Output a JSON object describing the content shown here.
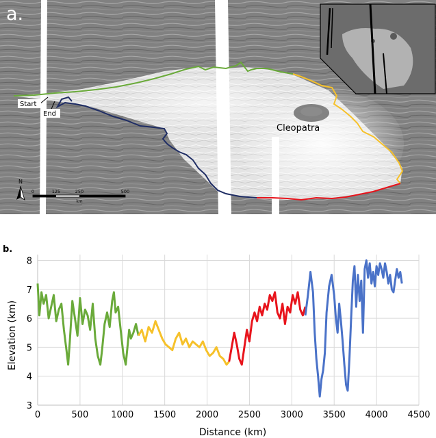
{
  "panel_a": {
    "panel_label": "a.",
    "place_label": "Cleopatra",
    "start_label": "Start",
    "end_label": "End",
    "north_label": "N",
    "scale": {
      "unit": "km",
      "ticks": [
        {
          "value": 0,
          "label": "0"
        },
        {
          "value": 125,
          "label": "125"
        },
        {
          "value": 250,
          "label": "250"
        },
        {
          "value": 500,
          "label": "500"
        }
      ]
    },
    "trace_colors": {
      "green": "#6aaa3a",
      "yellow": "#f6c12a",
      "red": "#e8141c",
      "navy": "#1f2d64"
    }
  },
  "chart_data": {
    "type": "line",
    "panel_label": "b.",
    "title": "",
    "xlabel": "Distance (km)",
    "ylabel": "Elevation (km)",
    "xlim": [
      0,
      4500
    ],
    "ylim": [
      3,
      8.2
    ],
    "grid": true,
    "x_ticks": [
      0,
      500,
      1000,
      1500,
      2000,
      2500,
      3000,
      3500,
      4000,
      4500
    ],
    "y_ticks": [
      3,
      4,
      5,
      6,
      7,
      8
    ],
    "series": [
      {
        "name": "green",
        "color": "#6aaa3a",
        "x": [
          0,
          20,
          45,
          70,
          100,
          130,
          160,
          190,
          220,
          250,
          280,
          310,
          340,
          360,
          380,
          410,
          440,
          470,
          500,
          530,
          560,
          590,
          620,
          650,
          680,
          710,
          740,
          760,
          790,
          820,
          850,
          880,
          900,
          920,
          950,
          980,
          1010,
          1040,
          1060,
          1080,
          1100,
          1130,
          1160,
          1190
        ],
        "values": [
          7.2,
          6.1,
          6.9,
          6.5,
          6.8,
          6.0,
          6.4,
          6.8,
          5.9,
          6.3,
          6.5,
          5.6,
          4.9,
          4.4,
          5.2,
          6.6,
          6.0,
          5.4,
          6.7,
          5.8,
          6.3,
          6.1,
          5.6,
          6.5,
          5.3,
          4.7,
          4.4,
          4.9,
          5.8,
          6.2,
          5.7,
          6.6,
          6.9,
          6.2,
          6.4,
          5.6,
          4.8,
          4.4,
          5.0,
          5.6,
          5.3,
          5.5,
          5.8,
          5.4
        ]
      },
      {
        "name": "yellow",
        "color": "#f6c12a",
        "x": [
          1190,
          1230,
          1270,
          1310,
          1350,
          1390,
          1430,
          1470,
          1510,
          1550,
          1590,
          1630,
          1670,
          1710,
          1750,
          1790,
          1830,
          1870,
          1910,
          1950,
          1990,
          2030,
          2070,
          2110,
          2150,
          2190,
          2230,
          2260
        ],
        "values": [
          5.4,
          5.6,
          5.2,
          5.7,
          5.5,
          5.9,
          5.6,
          5.3,
          5.1,
          5.0,
          4.9,
          5.3,
          5.5,
          5.1,
          5.3,
          5.0,
          5.2,
          5.1,
          5.0,
          5.2,
          4.9,
          4.7,
          4.8,
          5.0,
          4.7,
          4.6,
          4.4,
          4.5
        ]
      },
      {
        "name": "red",
        "color": "#e8141c",
        "x": [
          2260,
          2290,
          2320,
          2350,
          2380,
          2410,
          2440,
          2470,
          2500,
          2530,
          2560,
          2590,
          2620,
          2650,
          2680,
          2710,
          2740,
          2770,
          2800,
          2830,
          2860,
          2890,
          2920,
          2950,
          2980,
          3010,
          3040,
          3070,
          3100,
          3130,
          3160
        ],
        "values": [
          4.5,
          5.0,
          5.5,
          5.1,
          4.6,
          4.4,
          5.0,
          5.6,
          5.2,
          5.9,
          6.2,
          5.9,
          6.4,
          6.1,
          6.5,
          6.3,
          6.8,
          6.6,
          6.9,
          6.2,
          6.0,
          6.5,
          5.8,
          6.4,
          6.2,
          6.8,
          6.5,
          6.9,
          6.3,
          6.1,
          6.4
        ]
      },
      {
        "name": "blue",
        "color": "#4a72c8",
        "x": [
          3160,
          3190,
          3220,
          3250,
          3270,
          3290,
          3310,
          3330,
          3350,
          3370,
          3390,
          3410,
          3440,
          3470,
          3500,
          3520,
          3540,
          3560,
          3580,
          3600,
          3620,
          3640,
          3660,
          3680,
          3700,
          3720,
          3740,
          3760,
          3780,
          3800,
          3820,
          3840,
          3860,
          3880,
          3900,
          3920,
          3940,
          3960,
          3980,
          4000,
          4020,
          4040,
          4060,
          4080,
          4100,
          4120,
          4140,
          4160,
          4180,
          4200,
          4220,
          4240,
          4260,
          4280,
          4300
        ],
        "values": [
          6.1,
          6.8,
          7.6,
          6.9,
          5.5,
          4.6,
          4.0,
          3.3,
          3.9,
          4.2,
          4.8,
          6.2,
          7.1,
          7.5,
          6.8,
          6.0,
          5.5,
          6.5,
          5.9,
          5.2,
          4.4,
          3.7,
          3.5,
          4.6,
          6.0,
          7.3,
          7.8,
          6.4,
          7.5,
          6.6,
          7.3,
          5.5,
          7.7,
          8.0,
          7.4,
          7.9,
          7.2,
          7.6,
          7.1,
          7.8,
          7.5,
          7.9,
          7.7,
          7.4,
          7.9,
          7.6,
          7.2,
          7.5,
          7.0,
          6.9,
          7.3,
          7.7,
          7.4,
          7.6,
          7.2
        ]
      }
    ]
  }
}
